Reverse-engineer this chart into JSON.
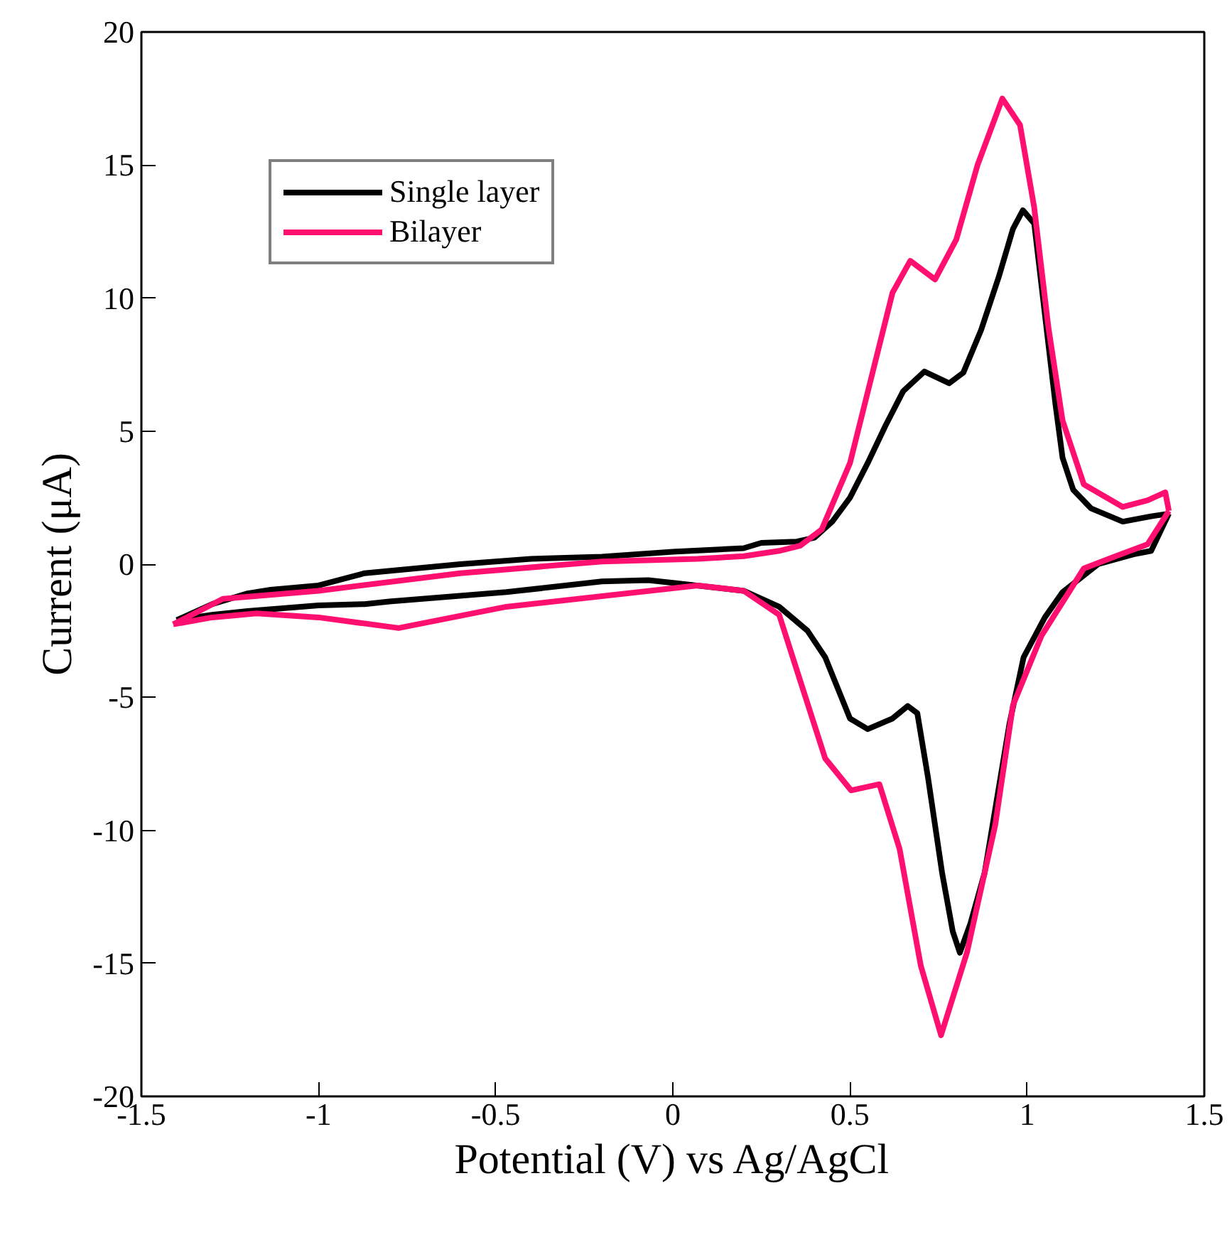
{
  "chart_data": {
    "type": "line",
    "xlabel": "Potential (V) vs Ag/AgCl",
    "ylabel": "Current (μA)",
    "xlim": [
      -1.5,
      1.5
    ],
    "xticks": [
      -1.5,
      -1,
      -0.5,
      0,
      0.5,
      1,
      1.5
    ],
    "ylim": [
      -20,
      20
    ],
    "yticks": [
      -20,
      -15,
      -10,
      -5,
      0,
      5,
      10,
      15,
      20
    ],
    "grid": false,
    "legend": "top left",
    "line_style": "solid",
    "marker": "none",
    "series": [
      {
        "name": "Single layer",
        "color": "#000000",
        "x": [
          -1.4,
          -1.3,
          -1.2,
          -1.135,
          -1.0,
          -0.87,
          -0.6,
          -0.4,
          -0.2,
          0,
          0.2,
          0.25,
          0.35,
          0.4,
          0.45,
          0.5,
          0.55,
          0.6,
          0.65,
          0.71,
          0.78,
          0.82,
          0.87,
          0.92,
          0.96,
          0.988,
          1.02,
          1.08,
          1.1,
          1.13,
          1.18,
          1.27,
          1.35,
          1.4
        ],
        "values": [
          -2.1,
          -1.5,
          -1.1,
          -0.96,
          -0.8,
          -0.34,
          0.0,
          0.2,
          0.28,
          0.47,
          0.6,
          0.8,
          0.85,
          1.0,
          1.6,
          2.5,
          3.8,
          5.2,
          6.5,
          7.24,
          6.8,
          7.2,
          8.8,
          10.8,
          12.6,
          13.3,
          12.8,
          6.0,
          4.0,
          2.8,
          2.1,
          1.6,
          1.8,
          1.9
        ]
      },
      {
        "color": "#000000",
        "x": [
          -1.4,
          -1.3,
          -1.2,
          -1.0,
          -0.87,
          -0.8,
          -0.47,
          -0.2,
          -0.07,
          0.0,
          0.2,
          0.3,
          0.38,
          0.43,
          0.5,
          0.55,
          0.62,
          0.663,
          0.69,
          0.72,
          0.76,
          0.79,
          0.81,
          0.84,
          0.88,
          0.95,
          0.99,
          1.05,
          1.1,
          1.2,
          1.3,
          1.35,
          1.4
        ],
        "values": [
          -2.1,
          -1.9,
          -1.76,
          -1.55,
          -1.5,
          -1.4,
          -1.05,
          -0.65,
          -0.6,
          -0.7,
          -1.0,
          -1.6,
          -2.5,
          -3.5,
          -5.8,
          -6.2,
          -5.8,
          -5.33,
          -5.6,
          -8.0,
          -11.6,
          -13.8,
          -14.6,
          -13.5,
          -11.6,
          -6.0,
          -3.5,
          -2.0,
          -1.05,
          0.0,
          0.37,
          0.5,
          1.9
        ]
      },
      {
        "name": "Bilayer",
        "color": "#ff1070",
        "x": [
          -1.41,
          -1.27,
          -1.0,
          -0.6,
          -0.2,
          0.07,
          0.2,
          0.3,
          0.36,
          0.42,
          0.5,
          0.56,
          0.62,
          0.67,
          0.74,
          0.8,
          0.86,
          0.93,
          0.98,
          1.02,
          1.06,
          1.1,
          1.16,
          1.27,
          1.34,
          1.39,
          1.4
        ],
        "values": [
          -2.26,
          -1.3,
          -1.0,
          -0.34,
          0.1,
          0.2,
          0.3,
          0.5,
          0.7,
          1.3,
          3.8,
          7.0,
          10.2,
          11.4,
          10.7,
          12.2,
          15.0,
          17.5,
          16.5,
          13.4,
          8.9,
          5.4,
          3.0,
          2.15,
          2.4,
          2.7,
          2.0
        ]
      },
      {
        "color": "#ff1070",
        "x": [
          -1.41,
          -1.3,
          -1.175,
          -1.0,
          -0.774,
          -0.47,
          0.07,
          0.2,
          0.3,
          0.36,
          0.43,
          0.503,
          0.583,
          0.64,
          0.7,
          0.757,
          0.83,
          0.91,
          0.96,
          1.04,
          1.16,
          1.25,
          1.34,
          1.4
        ],
        "values": [
          -2.26,
          -2.0,
          -1.85,
          -2.0,
          -2.4,
          -1.6,
          -0.8,
          -1.0,
          -1.9,
          -4.4,
          -7.3,
          -8.5,
          -8.27,
          -10.7,
          -15.1,
          -17.7,
          -14.6,
          -9.8,
          -5.3,
          -2.7,
          -0.16,
          0.3,
          0.75,
          2.0
        ]
      }
    ]
  }
}
